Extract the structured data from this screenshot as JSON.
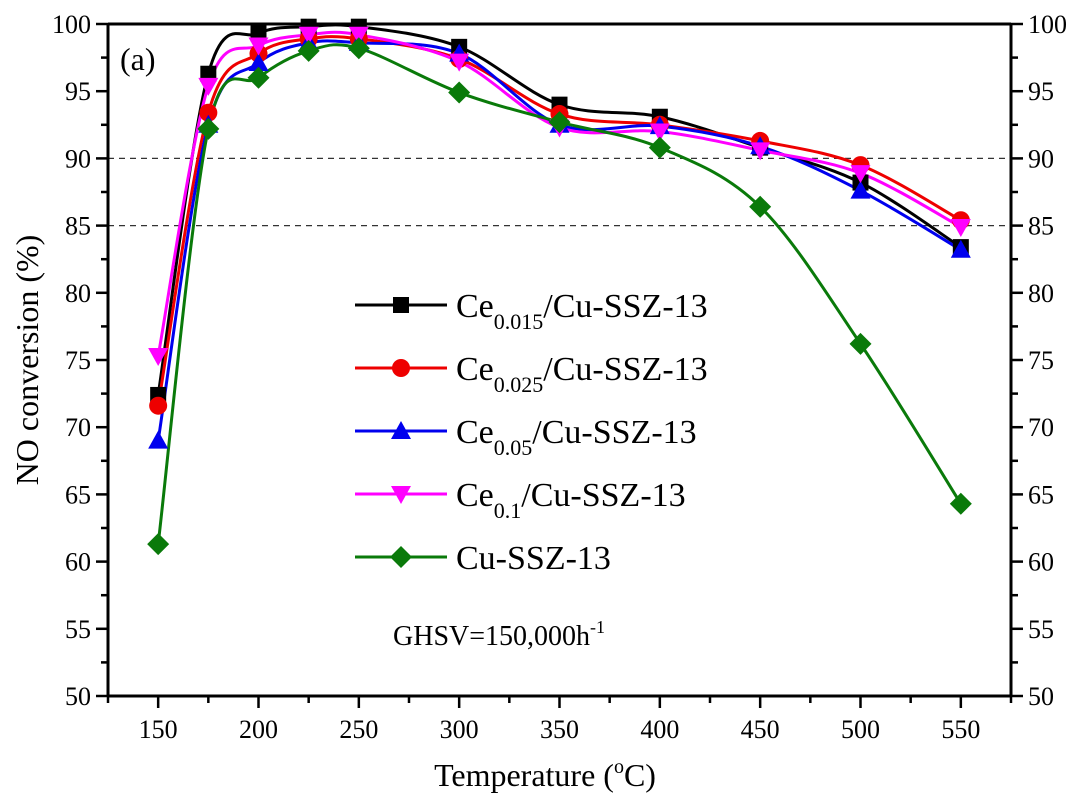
{
  "chart_data": {
    "type": "line",
    "panel_label": "(a)",
    "xlabel": "Temperature (°C)",
    "xlabel_parts": {
      "main": "Temperature (",
      "sup": "o",
      "tail": "C)"
    },
    "ylabel": "NO conversion (%)",
    "xlim": [
      125,
      575
    ],
    "ylim": [
      50,
      100
    ],
    "x_ticks": [
      150,
      200,
      250,
      300,
      350,
      400,
      450,
      500,
      550
    ],
    "x_minor_step": 25,
    "y_ticks": [
      50,
      55,
      60,
      65,
      70,
      75,
      80,
      85,
      90,
      95,
      100
    ],
    "y_minor_step": 2.5,
    "right_axis_mirrored": true,
    "reference_lines": [
      90,
      85
    ],
    "grid": false,
    "legend_position": "center",
    "annotation": {
      "main": "GHSV=150,000h",
      "sup": "-1"
    },
    "x": [
      150,
      175,
      200,
      225,
      250,
      300,
      350,
      400,
      450,
      500,
      550
    ],
    "series": [
      {
        "name": "Ce0.015/Cu-SSZ-13",
        "label_main": "Ce",
        "label_sub": "0.015",
        "label_tail": "/Cu-SSZ-13",
        "color": "#000000",
        "marker": "square",
        "values": [
          72.4,
          96.3,
          99.3,
          99.8,
          99.8,
          98.3,
          94.0,
          93.1,
          90.8,
          88.2,
          83.4
        ]
      },
      {
        "name": "Ce0.025/Cu-SSZ-13",
        "label_main": "Ce",
        "label_sub": "0.025",
        "label_tail": "/Cu-SSZ-13",
        "color": "#ee0000",
        "marker": "circle",
        "values": [
          71.6,
          93.4,
          97.8,
          98.9,
          98.9,
          97.4,
          93.3,
          92.5,
          91.3,
          89.5,
          85.4
        ]
      },
      {
        "name": "Ce0.05/Cu-SSZ-13",
        "label_main": "Ce",
        "label_sub": "0.05",
        "label_tail": "/Cu-SSZ-13",
        "color": "#0000ee",
        "marker": "triangle-up",
        "values": [
          69.0,
          92.5,
          97.1,
          98.6,
          98.6,
          97.8,
          92.5,
          92.4,
          90.9,
          87.6,
          83.2
        ]
      },
      {
        "name": "Ce0.1/Cu-SSZ-13",
        "label_main": "Ce",
        "label_sub": "0.1",
        "label_tail": "/Cu-SSZ-13",
        "color": "#ff00ff",
        "marker": "triangle-down",
        "values": [
          75.3,
          95.4,
          98.4,
          99.2,
          99.2,
          97.2,
          92.3,
          92.0,
          90.6,
          88.9,
          84.9
        ]
      },
      {
        "name": "Cu-SSZ-13",
        "label_main": "Cu-SSZ-13",
        "label_sub": "",
        "label_tail": "",
        "color": "#0a7a0a",
        "marker": "diamond",
        "values": [
          61.3,
          92.2,
          96.0,
          98.0,
          98.2,
          94.9,
          92.7,
          90.8,
          86.4,
          76.2,
          64.3
        ]
      }
    ]
  }
}
